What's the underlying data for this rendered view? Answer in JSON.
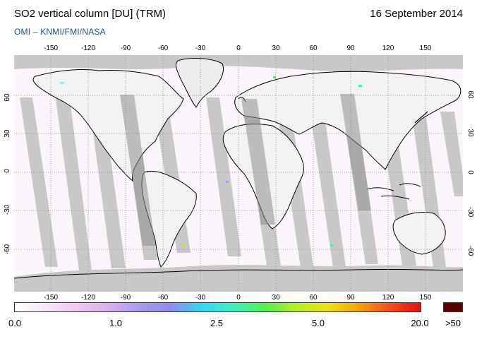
{
  "header": {
    "title": "SO2 vertical column [DU] (TRM)",
    "date": "16 September 2014",
    "source": "OMI  –  KNMI/FMI/NASA"
  },
  "map": {
    "projection": "equirectangular",
    "longitude_ticks": [
      "-150",
      "-120",
      "-90",
      "-60",
      "-30",
      "0",
      "30",
      "60",
      "90",
      "120",
      "150"
    ],
    "latitude_ticks": [
      "60",
      "30",
      "0",
      "-30",
      "-60"
    ],
    "gridlines": "dotted",
    "gridline_color": "#8a8a8a",
    "no_data_color": "#c8c8c8",
    "coastline_color": "#000000"
  },
  "colorbar": {
    "labels": [
      "0.0",
      "1.0",
      "2.5",
      "5.0",
      "20.0"
    ],
    "overflow_label": ">50",
    "overflow_color": "#5a0000",
    "colors": [
      "#ffffff",
      "#f7e6f7",
      "#eec9ee",
      "#d8b0ee",
      "#a69cf0",
      "#8b8cf2",
      "#35d7f5",
      "#40f0c0",
      "#52ef4f",
      "#b4ef2c",
      "#efe313",
      "#f6a20d",
      "#f34f1e",
      "#e30f0f"
    ]
  }
}
